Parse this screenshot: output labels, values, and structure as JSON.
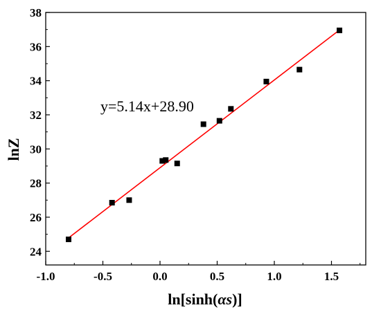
{
  "chart_data": {
    "type": "scatter",
    "xlabel_prefix": "ln[sinh(",
    "xlabel_italic": "αs",
    "xlabel_suffix": ")]",
    "ylabel": "lnZ",
    "xlim": [
      -1.0,
      1.8
    ],
    "ylim": [
      23.2,
      38
    ],
    "x_ticks": [
      -1.0,
      -0.5,
      0.0,
      0.5,
      1.0,
      1.5
    ],
    "x_tick_labels": [
      "-1.0",
      "-0.5",
      "0.0",
      "0.5",
      "1.0",
      "1.5"
    ],
    "y_ticks": [
      24,
      26,
      28,
      30,
      32,
      34,
      36,
      38
    ],
    "y_tick_labels": [
      "24",
      "26",
      "28",
      "30",
      "32",
      "34",
      "36",
      "38"
    ],
    "grid": false,
    "points": [
      {
        "x": -0.8,
        "y": 24.7
      },
      {
        "x": -0.42,
        "y": 26.85
      },
      {
        "x": -0.27,
        "y": 27.0
      },
      {
        "x": 0.02,
        "y": 29.3
      },
      {
        "x": 0.05,
        "y": 29.35
      },
      {
        "x": 0.15,
        "y": 29.15
      },
      {
        "x": 0.38,
        "y": 31.45
      },
      {
        "x": 0.52,
        "y": 31.65
      },
      {
        "x": 0.62,
        "y": 32.35
      },
      {
        "x": 0.93,
        "y": 33.95
      },
      {
        "x": 1.22,
        "y": 34.65
      },
      {
        "x": 1.57,
        "y": 36.95
      }
    ],
    "fit_line": {
      "slope": 5.14,
      "intercept": 28.9,
      "x_start": -0.8,
      "x_end": 1.57,
      "color": "#ff0000"
    },
    "annotation": "y=5.14x+28.90",
    "marker_color": "#000000"
  }
}
